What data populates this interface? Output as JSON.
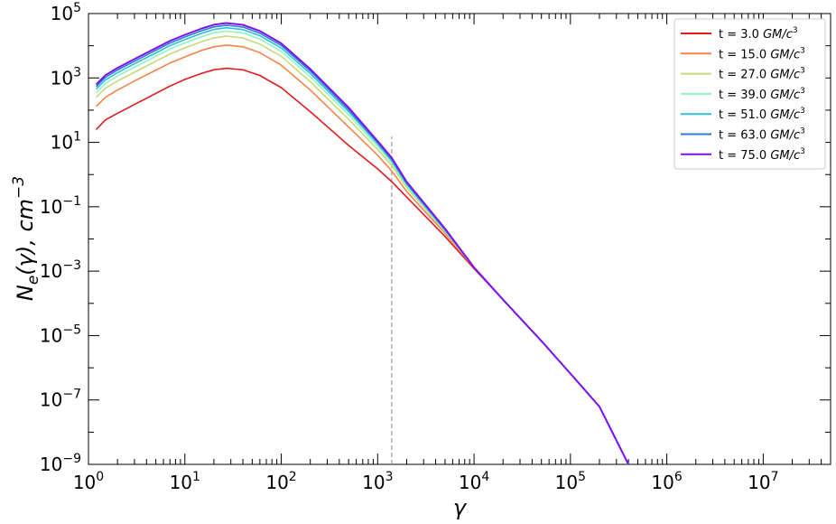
{
  "chart_data": {
    "type": "line",
    "title": "",
    "xlabel": "γ",
    "ylabel_parts": {
      "main": "N",
      "sub": "e",
      "arg": "(γ), cm",
      "sup": "−3"
    },
    "xscale": "log",
    "yscale": "log",
    "xlim": [
      1,
      50000000
    ],
    "ylim": [
      1e-09,
      100000
    ],
    "grid": false,
    "legend_position": "top-right",
    "x_tick_labels": [
      "10",
      "10",
      "10",
      "10",
      "10",
      "10",
      "10",
      "10"
    ],
    "x_tick_exponents": [
      "0",
      "1",
      "2",
      "3",
      "4",
      "5",
      "6",
      "7"
    ],
    "x_tick_values": [
      1,
      10,
      100,
      1000,
      10000,
      100000,
      1000000,
      10000000
    ],
    "y_tick_labels": [
      "10",
      "10",
      "10",
      "10",
      "10",
      "10",
      "10",
      "10"
    ],
    "y_tick_exponents": [
      "−9",
      "−7",
      "−5",
      "−3",
      "−1",
      "1",
      "3",
      "5"
    ],
    "y_tick_values": [
      1e-09,
      1e-07,
      1e-05,
      0.001,
      0.1,
      10,
      1000,
      100000
    ],
    "vline": {
      "x": 1400,
      "ymax": 15,
      "color": "#999999"
    },
    "x": [
      1.2,
      1.5,
      2,
      3,
      5,
      7,
      10,
      15,
      20,
      27,
      40,
      60,
      100,
      200,
      500,
      1000,
      1400,
      2000,
      5000,
      10000,
      20000,
      50000,
      100000,
      200000,
      400000
    ],
    "series": [
      {
        "name": "t = 3.0",
        "unit": "GM/c",
        "unit_sup": "3",
        "color": "#e31a1c",
        "values": [
          25,
          50,
          80,
          150,
          330,
          560,
          900,
          1400,
          1800,
          2000,
          1800,
          1200,
          500,
          90,
          8,
          1.5,
          0.6,
          0.2,
          0.012,
          0.0012,
          0.00013,
          6.8e-06,
          6.6e-07,
          6.2e-08,
          1e-09
        ]
      },
      {
        "name": "t = 15.0",
        "unit": "GM/c",
        "unit_sup": "3",
        "color": "#f4844a",
        "values": [
          130,
          250,
          420,
          800,
          1750,
          2900,
          4500,
          7200,
          9300,
          10500,
          9300,
          6100,
          2500,
          420,
          30,
          4,
          1.3,
          0.3,
          0.015,
          0.0013,
          0.00013,
          6.8e-06,
          6.6e-07,
          6.2e-08,
          1e-09
        ]
      },
      {
        "name": "t = 27.0",
        "unit": "GM/c",
        "unit_sup": "3",
        "color": "#c8d97a",
        "values": [
          250,
          480,
          800,
          1500,
          3300,
          5500,
          8600,
          13500,
          17600,
          20000,
          17500,
          11300,
          4700,
          760,
          52,
          6,
          1.9,
          0.4,
          0.017,
          0.0013,
          0.00013,
          6.8e-06,
          6.6e-07,
          6.2e-08,
          1e-09
        ]
      },
      {
        "name": "t = 39.0",
        "unit": "GM/c",
        "unit_sup": "3",
        "color": "#8ef5c4",
        "values": [
          350,
          680,
          1150,
          2150,
          4700,
          7900,
          12300,
          19300,
          25100,
          28500,
          25000,
          16100,
          6700,
          1080,
          72,
          7.5,
          2.3,
          0.45,
          0.018,
          0.0013,
          0.00013,
          6.8e-06,
          6.6e-07,
          6.2e-08,
          1e-09
        ]
      },
      {
        "name": "t = 51.0",
        "unit": "GM/c",
        "unit_sup": "3",
        "color": "#2fbfd6",
        "values": [
          450,
          870,
          1460,
          2750,
          6000,
          10100,
          15700,
          24600,
          32000,
          36300,
          31800,
          20500,
          8500,
          1370,
          90,
          9,
          2.7,
          0.5,
          0.019,
          0.0013,
          0.00013,
          6.8e-06,
          6.6e-07,
          6.2e-08,
          1e-09
        ]
      },
      {
        "name": "t = 63.0",
        "unit": "GM/c",
        "unit_sup": "3",
        "color": "#2c7bd6",
        "values": [
          540,
          1050,
          1760,
          3300,
          7200,
          12100,
          18800,
          29500,
          38400,
          43500,
          38200,
          24600,
          10200,
          1640,
          105,
          10,
          3,
          0.55,
          0.02,
          0.0013,
          0.00013,
          6.8e-06,
          6.6e-07,
          6.2e-08,
          1e-09
        ]
      },
      {
        "name": "t = 75.0",
        "unit": "GM/c",
        "unit_sup": "3",
        "color": "#7f10f0",
        "values": [
          630,
          1220,
          2050,
          3850,
          8400,
          14100,
          21900,
          34400,
          44800,
          50700,
          44500,
          28700,
          11900,
          1900,
          120,
          11,
          3.3,
          0.6,
          0.021,
          0.0013,
          0.00013,
          6.8e-06,
          6.6e-07,
          6.2e-08,
          1e-09
        ]
      }
    ]
  }
}
